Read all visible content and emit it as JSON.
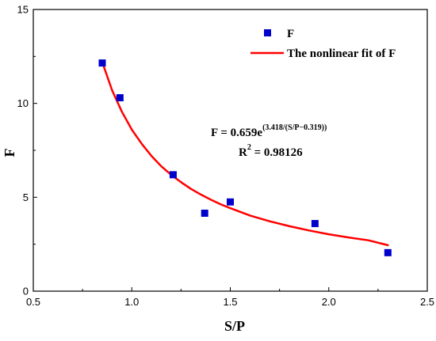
{
  "chart_data": {
    "type": "scatter",
    "xlabel": "S/P",
    "ylabel": "F",
    "xlim": [
      0.5,
      2.5
    ],
    "ylim": [
      0,
      15
    ],
    "x_ticks": [
      "0.5",
      "1.0",
      "1.5",
      "2.0",
      "2.5"
    ],
    "y_ticks": [
      "0",
      "5",
      "10",
      "15"
    ],
    "grid": false,
    "legend_position": "top-right",
    "series": [
      {
        "name": "F",
        "kind": "scatter",
        "color": "#0000cc",
        "marker": "square",
        "x": [
          0.85,
          0.94,
          1.21,
          1.37,
          1.5,
          1.93,
          2.3
        ],
        "y": [
          12.15,
          10.3,
          6.2,
          4.15,
          4.75,
          3.6,
          2.05
        ]
      },
      {
        "name": "The nonlinear fit of F",
        "kind": "line",
        "color": "#ff0000",
        "x": [
          0.85,
          0.9,
          0.95,
          1.0,
          1.05,
          1.1,
          1.15,
          1.2,
          1.25,
          1.3,
          1.35,
          1.4,
          1.45,
          1.5,
          1.6,
          1.7,
          1.8,
          1.9,
          2.0,
          2.1,
          2.2,
          2.3
        ],
        "y": [
          12.2,
          10.7,
          9.55,
          8.6,
          7.85,
          7.2,
          6.65,
          6.2,
          5.8,
          5.45,
          5.15,
          4.88,
          4.63,
          4.42,
          4.03,
          3.72,
          3.46,
          3.23,
          3.03,
          2.86,
          2.71,
          2.45
        ]
      }
    ],
    "annotation": {
      "equation_prefix": "F = 0.659e",
      "equation_exponent": "(3.418/(S/P−0.319))",
      "r2_prefix": "R",
      "r2_sup": "2",
      "r2_suffix": " = 0.98126"
    }
  }
}
